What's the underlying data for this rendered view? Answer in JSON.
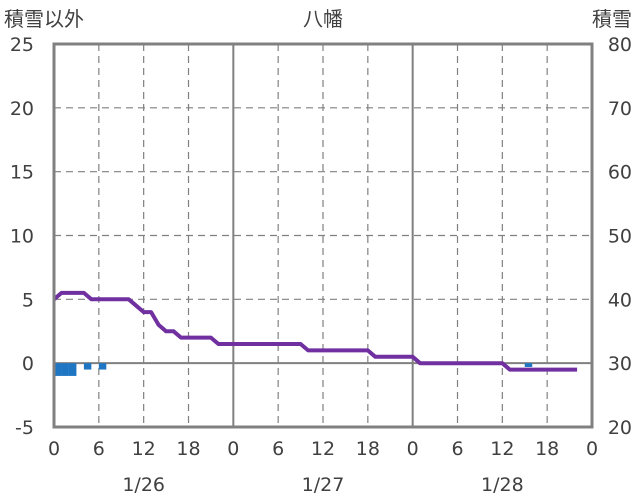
{
  "chart_data": {
    "type": "line",
    "title": "八幡",
    "ylabel_left": "積雪以外",
    "ylabel_right": "積雪",
    "ylim_left": [
      -5,
      25
    ],
    "ylim_right": [
      20,
      80
    ],
    "yticks_left": [
      "-5",
      "0",
      "5",
      "10",
      "15",
      "20",
      "25"
    ],
    "yticks_right": [
      "20",
      "30",
      "40",
      "50",
      "60",
      "70",
      "80"
    ],
    "xticks": [
      "0",
      "6",
      "12",
      "18",
      "0",
      "6",
      "12",
      "18",
      "0",
      "6",
      "12",
      "18",
      "0"
    ],
    "dates": [
      "1/26",
      "1/27",
      "1/28"
    ],
    "grid": true,
    "colors": {
      "snow_depth": "#7030a0",
      "precip": "#1f77c4",
      "axis": "#808080",
      "grid": "#808080"
    },
    "snow_depth": {
      "hours": [
        0,
        1,
        2,
        3,
        4,
        5,
        6,
        7,
        8,
        9,
        10,
        11,
        12,
        13,
        14,
        15,
        16,
        17,
        18,
        19,
        20,
        21,
        22,
        23,
        24,
        25,
        26,
        27,
        28,
        29,
        30,
        31,
        32,
        33,
        34,
        35,
        36,
        37,
        38,
        39,
        40,
        41,
        42,
        43,
        44,
        45,
        46,
        47,
        48,
        49,
        50,
        51,
        52,
        53,
        54,
        55,
        56,
        57,
        58,
        59,
        60,
        61,
        62,
        63,
        64,
        65,
        66,
        67,
        68,
        69,
        70
      ],
      "values": [
        40,
        41,
        41,
        41,
        41,
        40,
        40,
        40,
        40,
        40,
        40,
        39,
        38,
        38,
        36,
        35,
        35,
        34,
        34,
        34,
        34,
        34,
        33,
        33,
        33,
        33,
        33,
        33,
        33,
        33,
        33,
        33,
        33,
        33,
        32,
        32,
        32,
        32,
        32,
        32,
        32,
        32,
        32,
        31,
        31,
        31,
        31,
        31,
        31,
        30,
        30,
        30,
        30,
        30,
        30,
        30,
        30,
        30,
        30,
        30,
        30,
        29,
        29,
        29,
        29,
        29,
        29,
        29,
        29,
        29,
        29
      ]
    },
    "precip": {
      "hours": [
        0,
        1,
        2,
        4,
        6,
        63
      ],
      "values": [
        -1.0,
        -1.0,
        -1.0,
        -0.5,
        -0.5,
        -0.3
      ]
    }
  }
}
